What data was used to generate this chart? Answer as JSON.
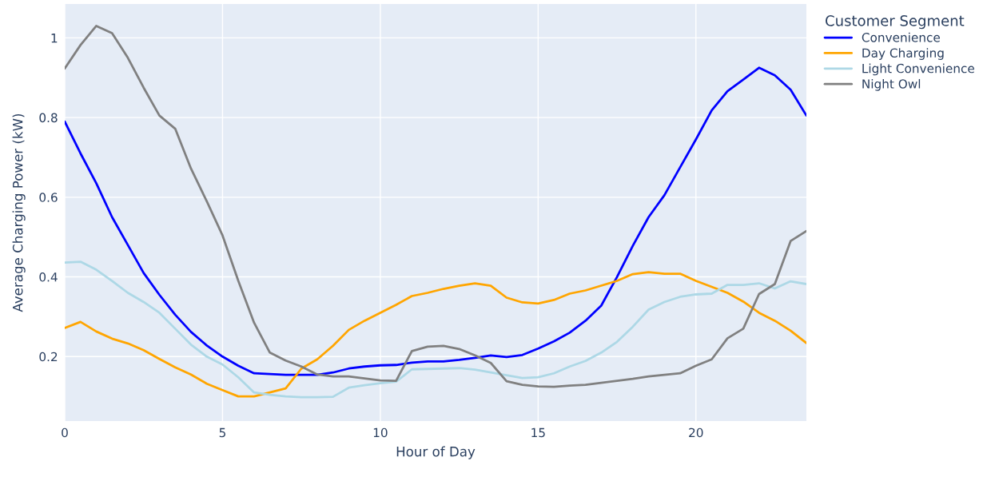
{
  "chart_data": {
    "type": "line",
    "xlabel": "Hour of Day",
    "ylabel": "Average Charging Power (kW)",
    "legend_title": "Customer Segment",
    "legend": "right",
    "grid": true,
    "x": [
      0,
      0.5,
      1,
      1.5,
      2,
      2.5,
      3,
      3.5,
      4,
      4.5,
      5,
      5.5,
      6,
      6.5,
      7,
      7.5,
      8,
      8.5,
      9,
      9.5,
      10,
      10.5,
      11,
      11.5,
      12,
      12.5,
      13,
      13.5,
      14,
      14.5,
      15,
      15.5,
      16,
      16.5,
      17,
      17.5,
      18,
      18.5,
      19,
      19.5,
      20,
      20.5,
      21,
      21.5,
      22,
      22.5,
      23,
      23.5
    ],
    "xlim": [
      0,
      23.5
    ],
    "xticks": [
      0,
      5,
      10,
      15,
      20
    ],
    "ylim": [
      0.038,
      1.085
    ],
    "yticks": [
      0.2,
      0.4,
      0.6,
      0.8,
      1
    ],
    "series": [
      {
        "name": "Convenience",
        "color": "#0000ff",
        "values": [
          0.79,
          0.71,
          0.635,
          0.55,
          0.48,
          0.41,
          0.355,
          0.305,
          0.262,
          0.228,
          0.2,
          0.177,
          0.158,
          0.156,
          0.154,
          0.154,
          0.154,
          0.16,
          0.17,
          0.175,
          0.178,
          0.179,
          0.185,
          0.188,
          0.188,
          0.192,
          0.197,
          0.203,
          0.199,
          0.204,
          0.22,
          0.238,
          0.26,
          0.29,
          0.328,
          0.4,
          0.478,
          0.55,
          0.605,
          0.675,
          0.745,
          0.818,
          0.866,
          0.895,
          0.925,
          0.906,
          0.87,
          0.805
        ]
      },
      {
        "name": "Day Charging",
        "color": "#ffa500",
        "values": [
          0.272,
          0.287,
          0.263,
          0.245,
          0.233,
          0.216,
          0.194,
          0.173,
          0.155,
          0.132,
          0.116,
          0.1,
          0.1,
          0.11,
          0.12,
          0.17,
          0.193,
          0.227,
          0.267,
          0.29,
          0.31,
          0.33,
          0.352,
          0.36,
          0.37,
          0.378,
          0.384,
          0.378,
          0.348,
          0.336,
          0.333,
          0.342,
          0.358,
          0.366,
          0.378,
          0.39,
          0.407,
          0.412,
          0.408,
          0.408,
          0.39,
          0.375,
          0.36,
          0.338,
          0.31,
          0.29,
          0.265,
          0.234
        ]
      },
      {
        "name": "Light Convenience",
        "color": "#add8e6",
        "values": [
          0.436,
          0.438,
          0.418,
          0.39,
          0.36,
          0.337,
          0.31,
          0.27,
          0.23,
          0.2,
          0.18,
          0.148,
          0.11,
          0.104,
          0.1,
          0.098,
          0.098,
          0.099,
          0.122,
          0.128,
          0.133,
          0.137,
          0.168,
          0.169,
          0.17,
          0.171,
          0.167,
          0.16,
          0.153,
          0.146,
          0.148,
          0.158,
          0.175,
          0.189,
          0.21,
          0.237,
          0.275,
          0.318,
          0.337,
          0.35,
          0.356,
          0.358,
          0.38,
          0.38,
          0.384,
          0.371,
          0.389,
          0.382
        ]
      },
      {
        "name": "Night Owl",
        "color": "#808080",
        "values": [
          0.923,
          0.982,
          1.03,
          1.012,
          0.95,
          0.875,
          0.805,
          0.772,
          0.672,
          0.59,
          0.504,
          0.39,
          0.285,
          0.21,
          0.19,
          0.175,
          0.155,
          0.15,
          0.15,
          0.145,
          0.14,
          0.139,
          0.214,
          0.225,
          0.227,
          0.219,
          0.203,
          0.184,
          0.138,
          0.129,
          0.125,
          0.124,
          0.127,
          0.129,
          0.134,
          0.139,
          0.144,
          0.15,
          0.154,
          0.158,
          0.177,
          0.193,
          0.246,
          0.27,
          0.357,
          0.382,
          0.49,
          0.515
        ]
      }
    ]
  }
}
